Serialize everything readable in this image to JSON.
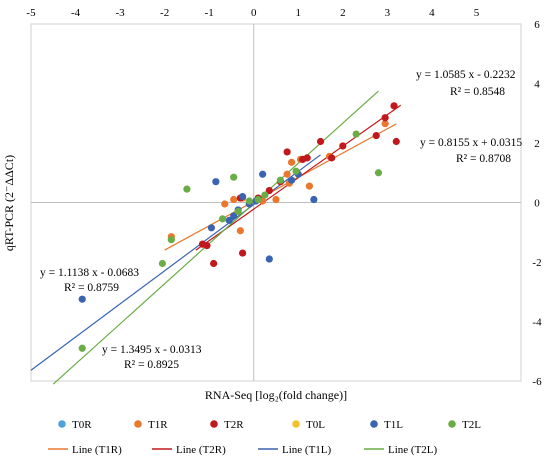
{
  "chart_data": {
    "type": "scatter",
    "title": "",
    "xlabel": "RNA-Seq [log₂(fold change)]",
    "ylabel": "qRT-PCR (2⁻ΔΔCt)",
    "xlim": [
      -5,
      6
    ],
    "ylim": [
      -6,
      6
    ],
    "x_ticks": [
      "-5",
      "-4",
      "-3",
      "-2",
      "-1",
      "0",
      "1",
      "2",
      "3",
      "4",
      "5"
    ],
    "y_ticks": [
      "-6",
      "-4",
      "-2",
      "0",
      "2",
      "4",
      "6"
    ],
    "x_tick_values": [
      -5,
      -4,
      -3,
      -2,
      -1,
      0,
      1,
      2,
      3,
      4,
      5
    ],
    "y_tick_values": [
      -6,
      -4,
      -2,
      0,
      2,
      4,
      6
    ],
    "grid": false,
    "legend_position": "bottom",
    "series": [
      {
        "name": "T0R",
        "color": "#4ea3dc",
        "points": []
      },
      {
        "name": "T1R",
        "color": "#e9782e",
        "points": [
          [
            -1.85,
            -1.15
          ],
          [
            -0.65,
            -0.05
          ],
          [
            -0.3,
            -0.95
          ],
          [
            -0.45,
            0.1
          ],
          [
            -0.25,
            0.15
          ],
          [
            0.2,
            0.05
          ],
          [
            0.5,
            0.1
          ],
          [
            0.8,
            0.65
          ],
          [
            0.85,
            1.35
          ],
          [
            1.25,
            0.55
          ],
          [
            1.05,
            1.45
          ],
          [
            1.7,
            1.55
          ],
          [
            2.95,
            2.65
          ],
          [
            0.75,
            0.95
          ]
        ]
      },
      {
        "name": "T2R",
        "color": "#c0181c",
        "points": [
          [
            -1.15,
            -1.4
          ],
          [
            -1.05,
            -1.45
          ],
          [
            -0.9,
            -2.05
          ],
          [
            -0.25,
            -1.7
          ],
          [
            -0.3,
            0.15
          ],
          [
            0.1,
            0.15
          ],
          [
            0.35,
            0.4
          ],
          [
            0.75,
            1.7
          ],
          [
            1.1,
            1.45
          ],
          [
            1.2,
            1.5
          ],
          [
            1.5,
            2.05
          ],
          [
            2.0,
            1.9
          ],
          [
            2.75,
            2.25
          ],
          [
            2.95,
            2.85
          ],
          [
            3.15,
            3.25
          ],
          [
            3.2,
            2.05
          ],
          [
            1.75,
            1.5
          ],
          [
            0.6,
            0.7
          ]
        ]
      },
      {
        "name": "T0L",
        "color": "#f2c12e",
        "points": []
      },
      {
        "name": "T1L",
        "color": "#3a63b0",
        "points": [
          [
            -3.85,
            -3.25
          ],
          [
            -0.95,
            -0.85
          ],
          [
            -0.85,
            0.7
          ],
          [
            -0.55,
            -0.6
          ],
          [
            -0.45,
            -0.45
          ],
          [
            -0.25,
            0.2
          ],
          [
            -0.1,
            -0.05
          ],
          [
            0.05,
            0.05
          ],
          [
            0.2,
            0.95
          ],
          [
            0.35,
            -1.9
          ],
          [
            0.85,
            0.75
          ],
          [
            1.0,
            0.95
          ],
          [
            1.35,
            0.1
          ],
          [
            -0.35,
            -0.25
          ]
        ]
      },
      {
        "name": "T2L",
        "color": "#6aac46",
        "points": [
          [
            -3.85,
            -4.9
          ],
          [
            -2.05,
            -2.05
          ],
          [
            -1.85,
            -1.25
          ],
          [
            -1.5,
            0.45
          ],
          [
            -0.45,
            0.85
          ],
          [
            -0.35,
            -0.3
          ],
          [
            -0.1,
            0.05
          ],
          [
            0.1,
            0.1
          ],
          [
            0.25,
            0.25
          ],
          [
            0.6,
            0.75
          ],
          [
            0.95,
            1.05
          ],
          [
            2.3,
            2.3
          ],
          [
            2.8,
            1.0
          ],
          [
            -0.7,
            -0.55
          ]
        ]
      }
    ],
    "trendlines": [
      {
        "name": "Line (T1R)",
        "color": "#e9782e",
        "slope": 0.8155,
        "intercept": 0.0315,
        "x_range": [
          -2.0,
          3.2
        ],
        "equation": "y = 0.8155 x + 0.0315",
        "r2": "R² = 0.8708"
      },
      {
        "name": "Line (T2R)",
        "color": "#c0181c",
        "slope": 1.0585,
        "intercept": -0.2232,
        "x_range": [
          -1.3,
          3.3
        ],
        "equation": "y = 1.0585 x - 0.2232",
        "r2": "R² = 0.8548"
      },
      {
        "name": "Line (T1L)",
        "color": "#3a63b0",
        "slope": 1.1138,
        "intercept": -0.0683,
        "x_range": [
          -5.0,
          1.5
        ],
        "equation": "y = 1.1138 x - 0.0683",
        "r2": "R² = 0.8759"
      },
      {
        "name": "Line (T2L)",
        "color": "#6aac46",
        "slope": 1.3495,
        "intercept": -0.0313,
        "x_range": [
          -4.5,
          2.8
        ],
        "equation": "y = 1.3495 x - 0.0313",
        "r2": "R² = 0.8925"
      }
    ]
  }
}
